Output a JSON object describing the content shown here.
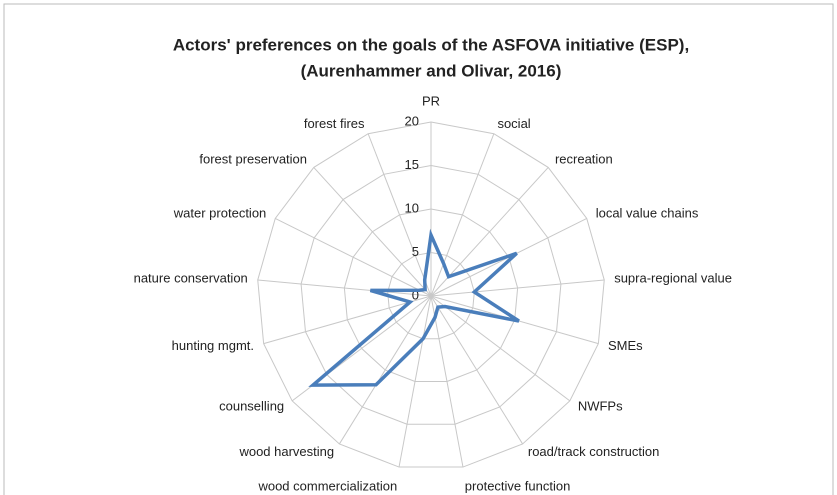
{
  "chart_data": {
    "type": "radar",
    "title": [
      "Actors' preferences on the goals of the ASFOVA initiative (ESP),",
      "(Aurenhammer and Olivar, 2016)"
    ],
    "categories": [
      "PR",
      "social",
      "recreation",
      "local value chains",
      "supra-regional value",
      "SMEs",
      "NWFPs",
      "road/track construction",
      "protective function",
      "wood commercialization",
      "wood harvesting",
      "counselling",
      "hunting mgmt.",
      "nature conservation",
      "water protection",
      "forest preservation",
      "forest fires"
    ],
    "values": [
      7,
      4,
      3,
      11,
      5,
      10.5,
      2,
      1.5,
      2.5,
      5,
      12,
      17,
      2.5,
      7,
      1.5,
      1,
      2
    ],
    "color": "#4a7ebb",
    "ylim": [
      0,
      20
    ],
    "yticks": [
      0,
      5,
      10,
      15,
      20
    ],
    "grid": true
  }
}
